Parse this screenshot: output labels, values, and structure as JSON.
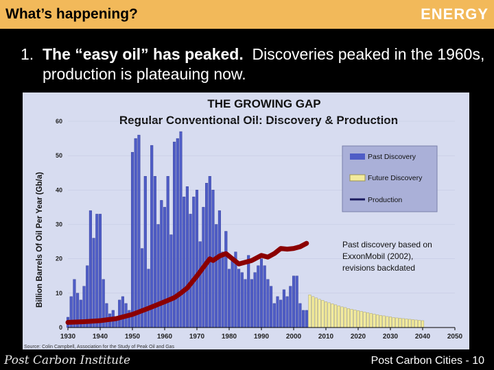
{
  "header": {
    "title": "What’s happening?",
    "section": "ENERGY"
  },
  "bullet": {
    "number": "1.",
    "bold": "The “easy oil” has peaked.",
    "rest": "Discoveries peaked in the 1960s, production is plateauing now."
  },
  "chart_data": {
    "type": "bar",
    "title": "THE GROWING GAP",
    "subtitle": "Regular Conventional Oil: Discovery & Production",
    "ylabel": "Billion Barrels Of Oil Per Year (Gb/a)",
    "xlabel": "",
    "xlim": [
      1930,
      2050
    ],
    "ylim": [
      0,
      60
    ],
    "xticks": [
      "1930",
      "1940",
      "1950",
      "1960",
      "1970",
      "1980",
      "1990",
      "2000",
      "2010",
      "2020",
      "2030",
      "2040",
      "2050"
    ],
    "yticks": [
      "0",
      "10",
      "20",
      "30",
      "40",
      "50",
      "60"
    ],
    "legend": [
      "Past Discovery",
      "Future Discovery",
      "Production"
    ],
    "legend_position": "top-right",
    "annotation": "Past discovery based on ExxonMobil (2002), revisions backdated",
    "source": "Source: Colin Campbell, Association for the Study of Peak Oil and Gas",
    "colors": {
      "past": "#4f5dc6",
      "future": "#f3eb9c",
      "production": "#8b0000",
      "background": "#d7dcf0"
    },
    "series": [
      {
        "name": "Past Discovery",
        "x": [
          1930,
          1931,
          1932,
          1933,
          1934,
          1935,
          1936,
          1937,
          1938,
          1939,
          1940,
          1941,
          1942,
          1943,
          1944,
          1945,
          1946,
          1947,
          1948,
          1949,
          1950,
          1951,
          1952,
          1953,
          1954,
          1955,
          1956,
          1957,
          1958,
          1959,
          1960,
          1961,
          1962,
          1963,
          1964,
          1965,
          1966,
          1967,
          1968,
          1969,
          1970,
          1971,
          1972,
          1973,
          1974,
          1975,
          1976,
          1977,
          1978,
          1979,
          1980,
          1981,
          1982,
          1983,
          1984,
          1985,
          1986,
          1987,
          1988,
          1989,
          1990,
          1991,
          1992,
          1993,
          1994,
          1995,
          1996,
          1997,
          1998,
          1999,
          2000,
          2001,
          2002,
          2003,
          2004
        ],
        "values": [
          3,
          9,
          14,
          10,
          8,
          12,
          18,
          34,
          26,
          33,
          33,
          14,
          7,
          4,
          5,
          2,
          8,
          9,
          7,
          5,
          51,
          55,
          56,
          23,
          44,
          17,
          53,
          44,
          30,
          37,
          35,
          44,
          27,
          54,
          55,
          57,
          38,
          41,
          33,
          38,
          40,
          25,
          35,
          42,
          44,
          40,
          30,
          34,
          22,
          28,
          17,
          20,
          22,
          17,
          16,
          14,
          21,
          14,
          16,
          18,
          20,
          18,
          14,
          12,
          7,
          9,
          8,
          11,
          9,
          12,
          15,
          15,
          7,
          5,
          5
        ]
      },
      {
        "name": "Future Discovery",
        "x": [
          2005,
          2006,
          2007,
          2008,
          2009,
          2010,
          2011,
          2012,
          2013,
          2014,
          2015,
          2016,
          2017,
          2018,
          2019,
          2020,
          2021,
          2022,
          2023,
          2024,
          2025,
          2026,
          2027,
          2028,
          2029,
          2030,
          2031,
          2032,
          2033,
          2034,
          2035,
          2036,
          2037,
          2038,
          2039,
          2040
        ],
        "values": [
          9.5,
          9,
          8.6,
          8.2,
          7.9,
          7.5,
          7.2,
          6.9,
          6.6,
          6.3,
          6,
          5.8,
          5.5,
          5.3,
          5.1,
          4.9,
          4.7,
          4.5,
          4.3,
          4.1,
          3.9,
          3.7,
          3.5,
          3.4,
          3.2,
          3.1,
          2.9,
          2.8,
          2.7,
          2.6,
          2.5,
          2.4,
          2.3,
          2.2,
          2.1,
          2.0
        ]
      },
      {
        "name": "Production",
        "x": [
          1930,
          1935,
          1940,
          1945,
          1950,
          1955,
          1960,
          1963,
          1965,
          1967,
          1970,
          1972,
          1974,
          1975,
          1977,
          1979,
          1981,
          1983,
          1985,
          1987,
          1989,
          1990,
          1992,
          1994,
          1996,
          1998,
          2000,
          2002,
          2004
        ],
        "values": [
          1.5,
          1.7,
          2,
          2.6,
          3.8,
          5.6,
          7.5,
          8.7,
          10,
          11.5,
          15,
          17.5,
          20,
          19.5,
          20.8,
          21.5,
          20,
          18.5,
          19,
          19.5,
          20.5,
          21,
          20.5,
          21.5,
          23,
          22.8,
          23,
          23.5,
          24.5
        ]
      }
    ]
  },
  "footer": {
    "logo": "Post Carbon Institute",
    "page": "Post Carbon Cities - 10"
  }
}
